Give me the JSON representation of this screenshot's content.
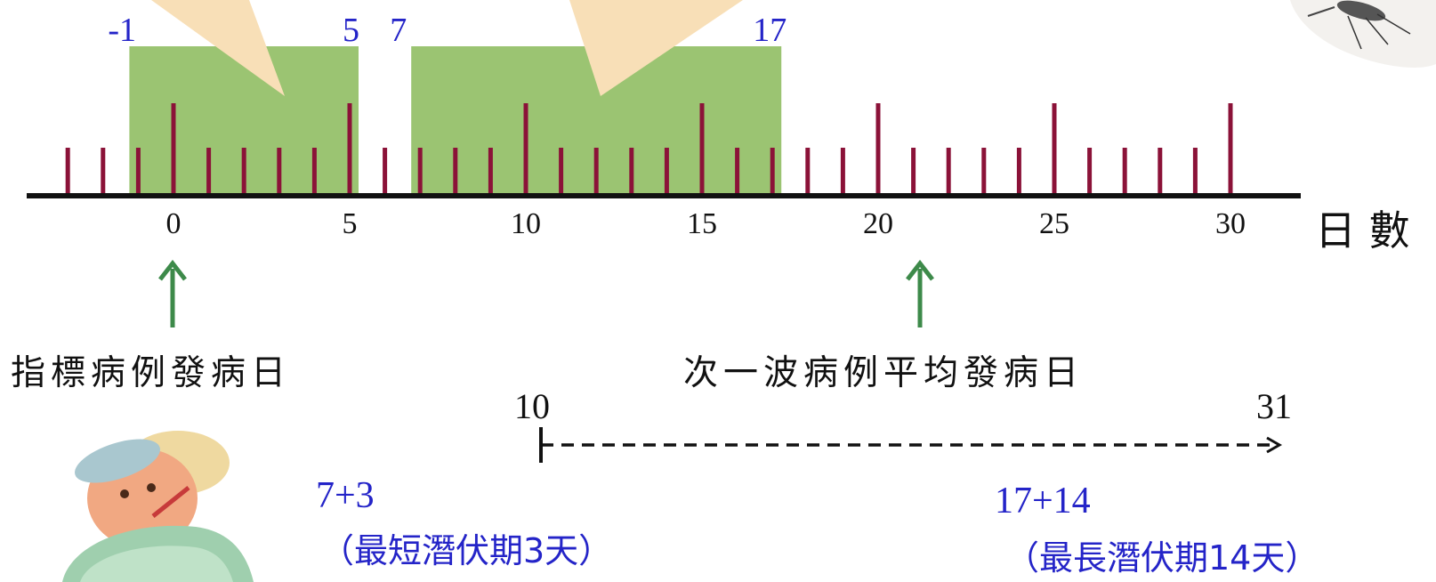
{
  "timeline": {
    "axis_label": "日 數",
    "day_min": -3,
    "day_max": 30,
    "tick_labels": [
      "0",
      "5",
      "10",
      "15",
      "20",
      "25",
      "30"
    ],
    "colors": {
      "tick": "#8b1238",
      "axis": "#111111",
      "window": "#9bc472",
      "callout": "#f8dfb7",
      "blue": "#2424c8",
      "arrow": "#3d8a4a"
    }
  },
  "windows": [
    {
      "start": -1,
      "end": 5,
      "start_label": "-1",
      "end_label": "5"
    },
    {
      "start": 7,
      "end": 17,
      "start_label": "7",
      "end_label": "17"
    }
  ],
  "markers": [
    {
      "day": 0,
      "label": "指標病例發病日"
    },
    {
      "day": 20,
      "label": "次一波病例平均發病日"
    }
  ],
  "range": {
    "start_label": "10",
    "end_label": "31"
  },
  "notes": [
    {
      "sum": "7+3",
      "desc": "（最短潛伏期3天）"
    },
    {
      "sum": "17+14",
      "desc": "（最長潛伏期14天）"
    }
  ],
  "icons": {
    "patient": "sick-patient-icon",
    "mosquito": "mosquito-icon"
  }
}
